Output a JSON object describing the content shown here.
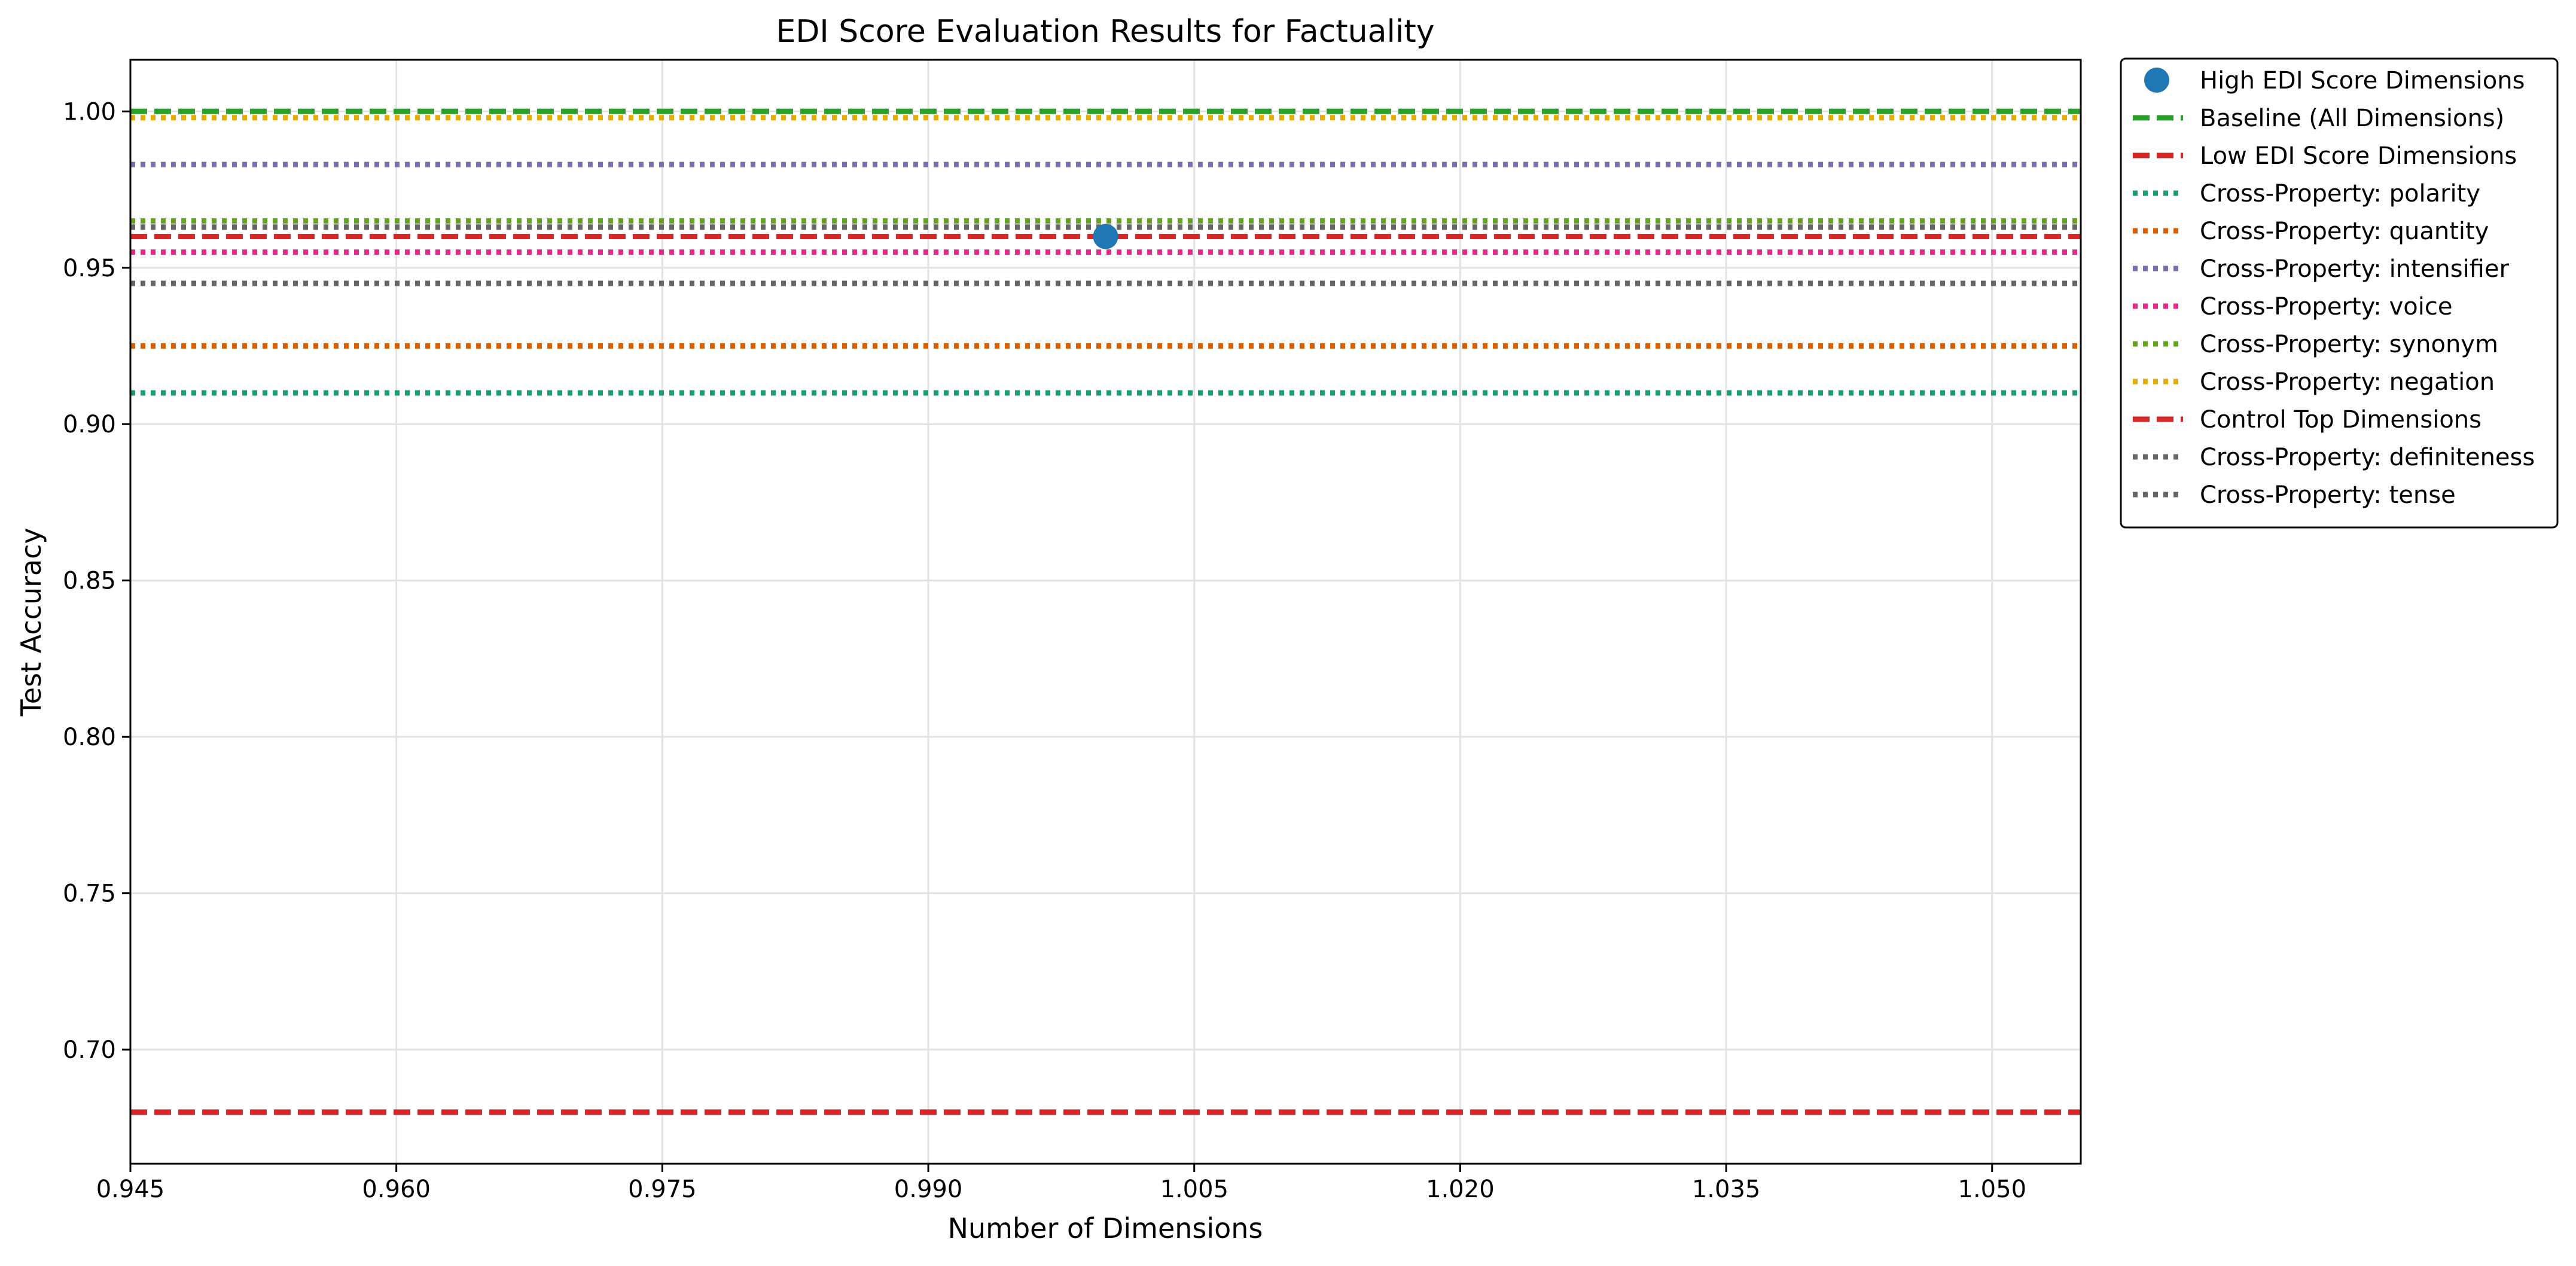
{
  "chart_data": {
    "type": "line",
    "title": "EDI Score Evaluation Results for Factuality",
    "xlabel": "Number of Dimensions",
    "ylabel": "Test Accuracy",
    "xlim": [
      0.945,
      1.055
    ],
    "ylim": [
      0.6635,
      1.0165
    ],
    "xticks": [
      "0.945",
      "0.960",
      "0.975",
      "0.990",
      "1.005",
      "1.020",
      "1.035",
      "1.050"
    ],
    "yticks": [
      "0.70",
      "0.75",
      "0.80",
      "0.85",
      "0.90",
      "0.95",
      "1.00"
    ],
    "grid": true,
    "legend_position": "outside-right",
    "points": [
      {
        "name": "High EDI Score Dimensions",
        "x": 1.0,
        "y": 0.96,
        "color": "#1f77b4"
      }
    ],
    "hlines": [
      {
        "name": "Baseline (All Dimensions)",
        "y": 1.0,
        "color": "#2ca02c",
        "style": "dashed"
      },
      {
        "name": "Low EDI Score Dimensions",
        "y": 0.68,
        "color": "#d62728",
        "style": "dashed"
      },
      {
        "name": "Cross-Property: polarity",
        "y": 0.91,
        "color": "#1b9e77",
        "style": "dotted"
      },
      {
        "name": "Cross-Property: quantity",
        "y": 0.925,
        "color": "#d95f02",
        "style": "dotted"
      },
      {
        "name": "Cross-Property: intensifier",
        "y": 0.983,
        "color": "#7570b3",
        "style": "dotted"
      },
      {
        "name": "Cross-Property: voice",
        "y": 0.955,
        "color": "#e7298a",
        "style": "dotted"
      },
      {
        "name": "Cross-Property: synonym",
        "y": 0.965,
        "color": "#66a61e",
        "style": "dotted"
      },
      {
        "name": "Cross-Property: negation",
        "y": 0.998,
        "color": "#e6ab02",
        "style": "dotted"
      },
      {
        "name": "Control Top Dimensions",
        "y": 0.96,
        "color": "#d62728",
        "style": "dashed"
      },
      {
        "name": "Cross-Property: definiteness",
        "y": 0.963,
        "color": "#666666",
        "style": "dotted"
      },
      {
        "name": "Cross-Property: tense",
        "y": 0.945,
        "color": "#666666",
        "style": "dotted"
      }
    ]
  }
}
